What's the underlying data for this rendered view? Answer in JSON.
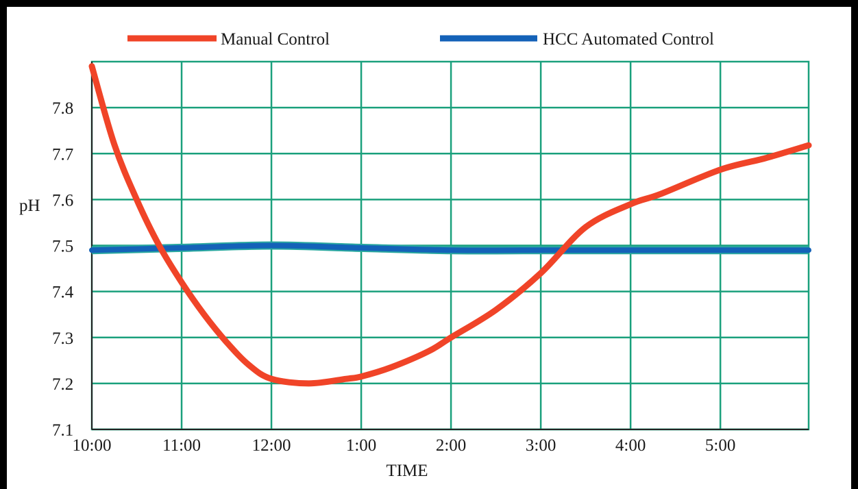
{
  "chart_data": {
    "type": "line",
    "xlabel": "TIME",
    "ylabel": "pH",
    "x_ticks": [
      "10:00",
      "11:00",
      "12:00",
      "1:00",
      "2:00",
      "3:00",
      "4:00",
      "5:00"
    ],
    "y_ticks": [
      "7.1",
      "7.2",
      "7.3",
      "7.4",
      "7.5",
      "7.6",
      "7.7",
      "7.8"
    ],
    "xlim": [
      "10:00",
      "5:59"
    ],
    "ylim": [
      7.1,
      7.9
    ],
    "grid": true,
    "legend_position": "top",
    "series": [
      {
        "name": "Manual Control",
        "color": "#f04428",
        "points": [
          {
            "x": "10:00",
            "y": 7.89
          },
          {
            "x": "10:15",
            "y": 7.72
          },
          {
            "x": "10:30",
            "y": 7.6
          },
          {
            "x": "10:45",
            "y": 7.5
          },
          {
            "x": "11:00",
            "y": 7.42
          },
          {
            "x": "11:15",
            "y": 7.35
          },
          {
            "x": "11:30",
            "y": 7.29
          },
          {
            "x": "11:45",
            "y": 7.24
          },
          {
            "x": "12:00",
            "y": 7.21
          },
          {
            "x": "12:25",
            "y": 7.2
          },
          {
            "x": "12:50",
            "y": 7.21
          },
          {
            "x": "1:00",
            "y": 7.215
          },
          {
            "x": "1:20",
            "y": 7.235
          },
          {
            "x": "1:45",
            "y": 7.27
          },
          {
            "x": "2:00",
            "y": 7.3
          },
          {
            "x": "2:30",
            "y": 7.36
          },
          {
            "x": "3:00",
            "y": 7.44
          },
          {
            "x": "3:30",
            "y": 7.54
          },
          {
            "x": "4:00",
            "y": 7.59
          },
          {
            "x": "4:20",
            "y": 7.612
          },
          {
            "x": "5:00",
            "y": 7.665
          },
          {
            "x": "5:30",
            "y": 7.69
          },
          {
            "x": "5:59",
            "y": 7.718
          }
        ]
      },
      {
        "name": "HCC Automated Control",
        "color": "#1462b8",
        "points": [
          {
            "x": "10:00",
            "y": 7.49
          },
          {
            "x": "11:00",
            "y": 7.495
          },
          {
            "x": "12:00",
            "y": 7.5
          },
          {
            "x": "1:00",
            "y": 7.495
          },
          {
            "x": "2:00",
            "y": 7.49
          },
          {
            "x": "3:00",
            "y": 7.49
          },
          {
            "x": "4:00",
            "y": 7.49
          },
          {
            "x": "5:00",
            "y": 7.49
          },
          {
            "x": "5:59",
            "y": 7.49
          }
        ]
      }
    ]
  },
  "colors": {
    "grid": "#1aa07c",
    "frame": "#000000",
    "background": "#ffffff"
  }
}
